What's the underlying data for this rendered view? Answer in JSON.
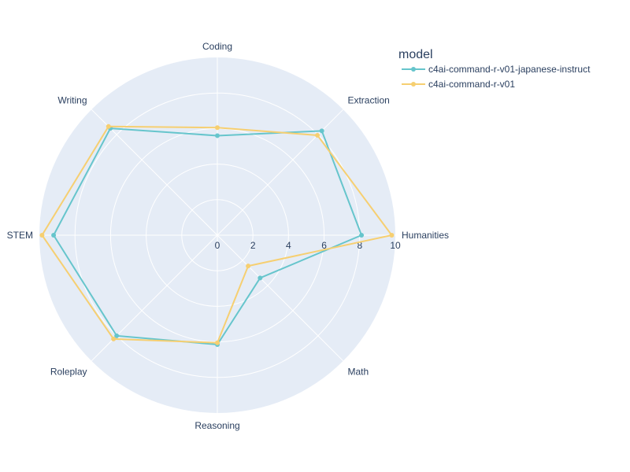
{
  "chart_data": {
    "type": "radar",
    "title": "",
    "categories": [
      "Coding",
      "Extraction",
      "Humanities",
      "Math",
      "Reasoning",
      "Roleplay",
      "STEM",
      "Writing"
    ],
    "radial_range": [
      0,
      10
    ],
    "radial_ticks": [
      "0",
      "2",
      "4",
      "6",
      "8",
      "10"
    ],
    "grid": true,
    "legend": {
      "title": "model",
      "placement": "top-right"
    },
    "series": [
      {
        "name": "c4ai-command-r-v01-japanese-instruct",
        "color": "#66C5CC",
        "values": [
          5.6,
          8.3,
          8.1,
          3.4,
          6.15,
          8.0,
          9.2,
          8.5
        ]
      },
      {
        "name": "c4ai-command-r-v01",
        "color": "#F6CF71",
        "values": [
          6.05,
          7.95,
          9.8,
          2.45,
          6.05,
          8.25,
          9.85,
          8.65
        ]
      }
    ]
  }
}
